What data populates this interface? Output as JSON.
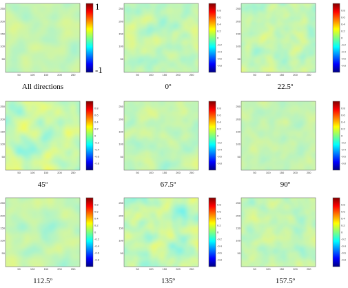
{
  "panels": [
    {
      "caption": "All directions",
      "colorbar_max": "1",
      "colorbar_min": "-1"
    },
    {
      "caption": "0º"
    },
    {
      "caption": "22.5º"
    },
    {
      "caption": "45º"
    },
    {
      "caption": "67.5º"
    },
    {
      "caption": "90º"
    },
    {
      "caption": "112.5º"
    },
    {
      "caption": "135º"
    },
    {
      "caption": "157.5º"
    }
  ],
  "axis_ticks": {
    "x": [
      "50",
      "100",
      "150",
      "200",
      "250"
    ],
    "y": [
      "50",
      "100",
      "150",
      "200",
      "250"
    ],
    "colorbar": [
      "0.8",
      "0.6",
      "0.4",
      "0.2",
      "0",
      "-0.2",
      "-0.4",
      "-0.6",
      "-0.8"
    ]
  }
}
